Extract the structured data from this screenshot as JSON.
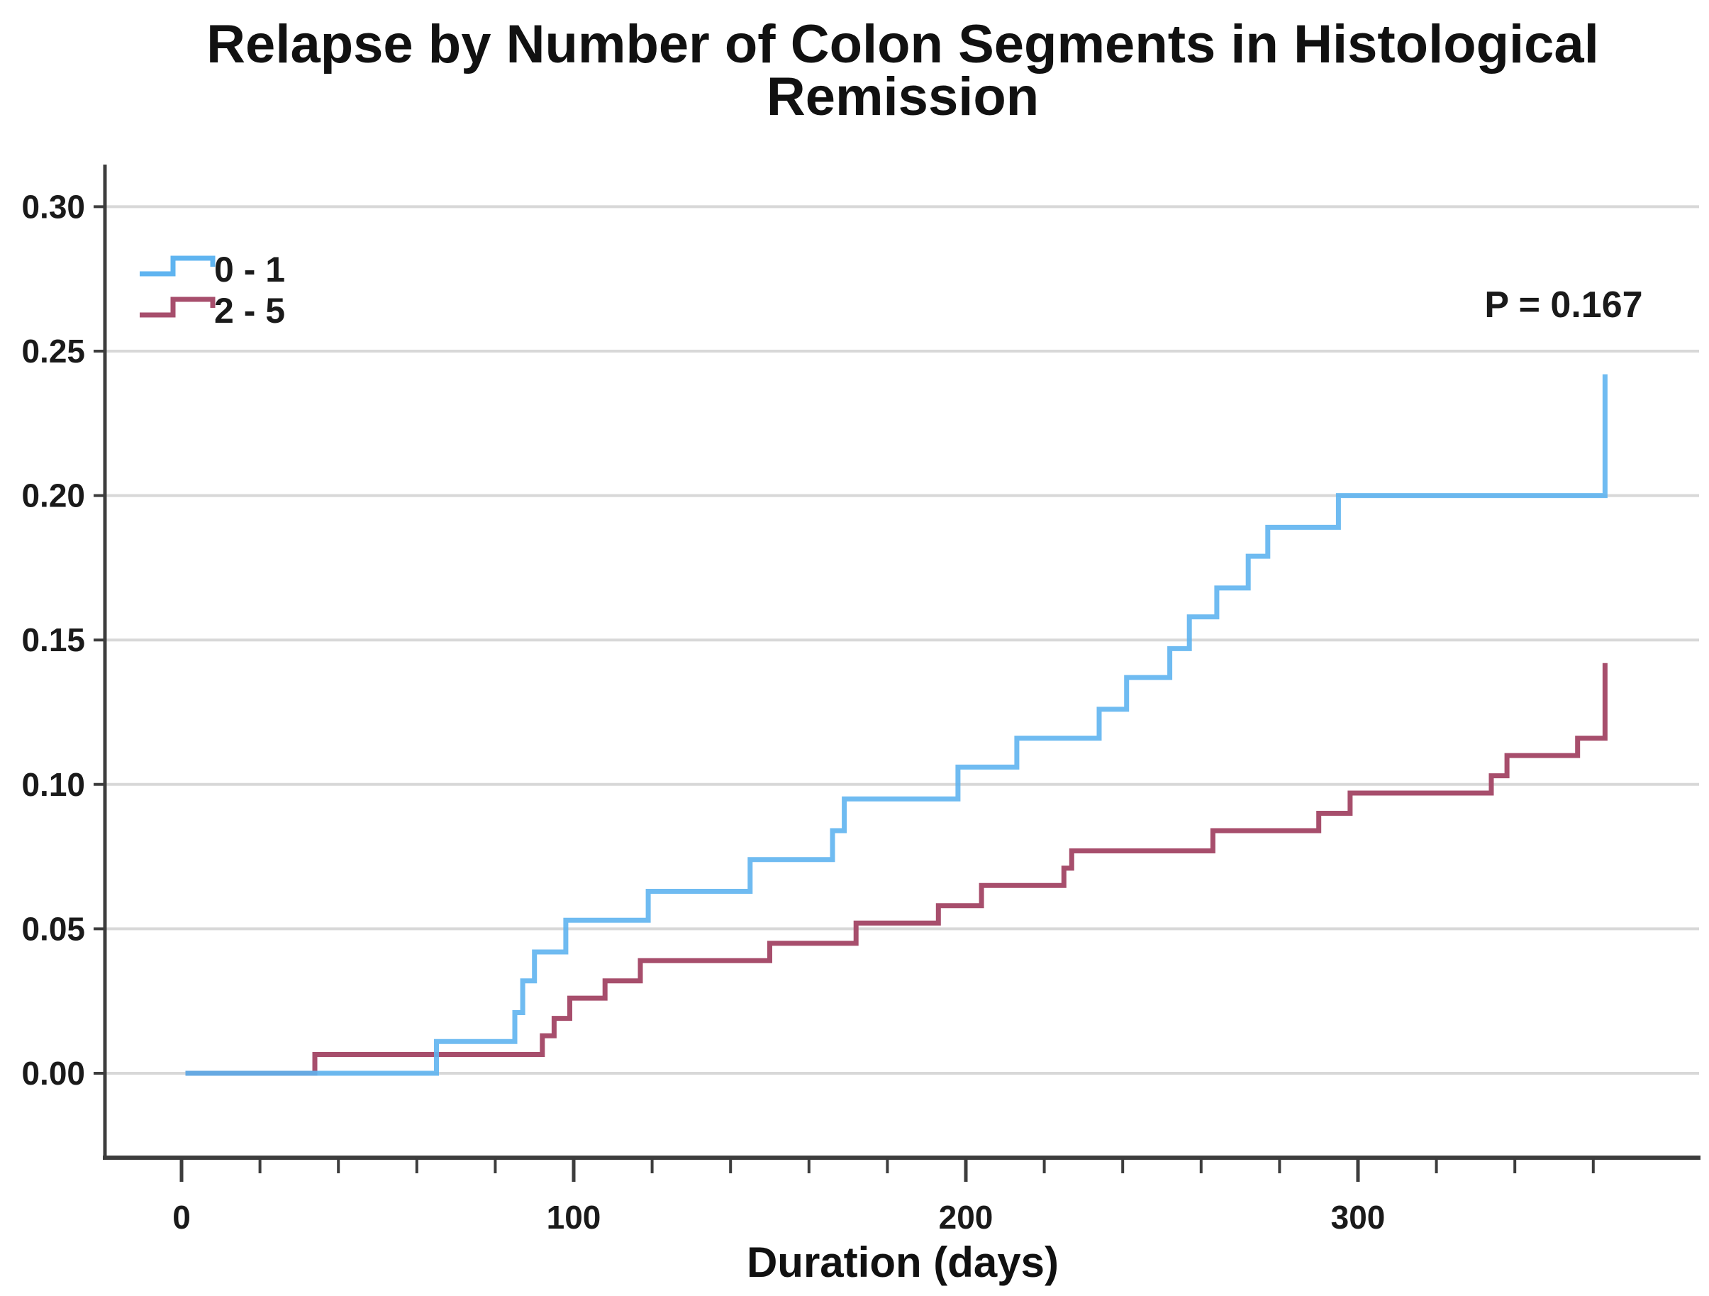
{
  "title": {
    "line1": "Relapse by Number of Colon Segments in Histological",
    "line2": "Remission"
  },
  "chart_data": {
    "type": "line",
    "subtype": "kaplan-meier-step-cumulative-incidence",
    "title": "Relapse by Number of Colon Segments in Histological Remission",
    "xlabel": "Duration (days)",
    "ylabel": "",
    "xlim": [
      -20,
      387
    ],
    "ylim": [
      0,
      0.315
    ],
    "x_major_ticks": [
      0,
      100,
      200,
      300
    ],
    "x_minor_tick_step": 20,
    "x_minor_tick_max": 360,
    "y_ticks": [
      0.0,
      0.05,
      0.1,
      0.15,
      0.2,
      0.25,
      0.3
    ],
    "grid": "horizontal",
    "legend_position": "upper-left-inside",
    "annotation": {
      "text": "P = 0.167"
    },
    "colors": {
      "gridline": "#d8d8d8",
      "axis": "#3d3d3d",
      "text": "#1a1a1a"
    },
    "series": [
      {
        "name": "0 - 1",
        "color": "#5FB4F0",
        "points": [
          [
            1,
            0
          ],
          [
            65,
            0.011
          ],
          [
            85,
            0.021
          ],
          [
            87,
            0.032
          ],
          [
            90,
            0.042
          ],
          [
            98,
            0.053
          ],
          [
            119,
            0.063
          ],
          [
            145,
            0.074
          ],
          [
            166,
            0.084
          ],
          [
            169,
            0.095
          ],
          [
            198,
            0.106
          ],
          [
            213,
            0.116
          ],
          [
            234,
            0.126
          ],
          [
            241,
            0.137
          ],
          [
            252,
            0.147
          ],
          [
            257,
            0.158
          ],
          [
            264,
            0.168
          ],
          [
            272,
            0.179
          ],
          [
            277,
            0.189
          ],
          [
            295,
            0.2
          ],
          [
            363,
            0.242
          ]
        ]
      },
      {
        "name": "2 - 5",
        "color": "#A74E6C",
        "points": [
          [
            1,
            0
          ],
          [
            34,
            0.0065
          ],
          [
            92,
            0.013
          ],
          [
            95,
            0.019
          ],
          [
            99,
            0.026
          ],
          [
            108,
            0.032
          ],
          [
            117,
            0.039
          ],
          [
            150,
            0.045
          ],
          [
            172,
            0.052
          ],
          [
            193,
            0.058
          ],
          [
            204,
            0.065
          ],
          [
            225,
            0.071
          ],
          [
            227,
            0.077
          ],
          [
            263,
            0.084
          ],
          [
            290,
            0.09
          ],
          [
            298,
            0.097
          ],
          [
            334,
            0.103
          ],
          [
            338,
            0.11
          ],
          [
            356,
            0.116
          ],
          [
            363,
            0.142
          ]
        ]
      }
    ]
  }
}
